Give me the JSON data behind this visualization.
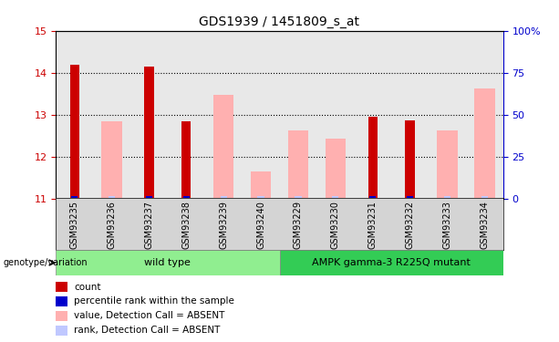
{
  "title": "GDS1939 / 1451809_s_at",
  "samples": [
    "GSM93235",
    "GSM93236",
    "GSM93237",
    "GSM93238",
    "GSM93239",
    "GSM93240",
    "GSM93229",
    "GSM93230",
    "GSM93231",
    "GSM93232",
    "GSM93233",
    "GSM93234"
  ],
  "red_bars": [
    14.2,
    null,
    14.15,
    12.85,
    null,
    null,
    null,
    null,
    12.95,
    12.87,
    null,
    null
  ],
  "pink_bars": [
    null,
    12.85,
    null,
    null,
    13.48,
    11.65,
    12.62,
    12.42,
    null,
    null,
    12.62,
    13.63
  ],
  "blue_bars": [
    11.05,
    null,
    11.05,
    11.05,
    null,
    null,
    null,
    null,
    11.05,
    11.05,
    null,
    null
  ],
  "light_blue_bars": [
    null,
    11.05,
    null,
    null,
    11.05,
    11.05,
    11.05,
    11.05,
    null,
    null,
    11.05,
    11.05
  ],
  "ylim": [
    11,
    15
  ],
  "yticks_left": [
    11,
    12,
    13,
    14,
    15
  ],
  "yticks_right": [
    0,
    25,
    50,
    75,
    100
  ],
  "right_tick_labels": [
    "0",
    "25",
    "50",
    "75",
    "100%"
  ],
  "groups": [
    {
      "label": "wild type",
      "start": 0,
      "end": 6,
      "color": "#90ee90"
    },
    {
      "label": "AMPK gamma-3 R225Q mutant",
      "start": 6,
      "end": 12,
      "color": "#33cc55"
    }
  ],
  "genotype_label": "genotype/variation",
  "bg_color": "#ffffff",
  "plot_bg": "#e8e8e8",
  "left_color": "#cc0000",
  "right_color": "#0000cc",
  "pink_color": "#ffb0b0",
  "light_blue_color": "#c0c8ff",
  "grid_color": "#000000",
  "legend_items": [
    {
      "color": "#cc0000",
      "label": "count"
    },
    {
      "color": "#0000cc",
      "label": "percentile rank within the sample"
    },
    {
      "color": "#ffb0b0",
      "label": "value, Detection Call = ABSENT"
    },
    {
      "color": "#c0c8ff",
      "label": "rank, Detection Call = ABSENT"
    }
  ]
}
